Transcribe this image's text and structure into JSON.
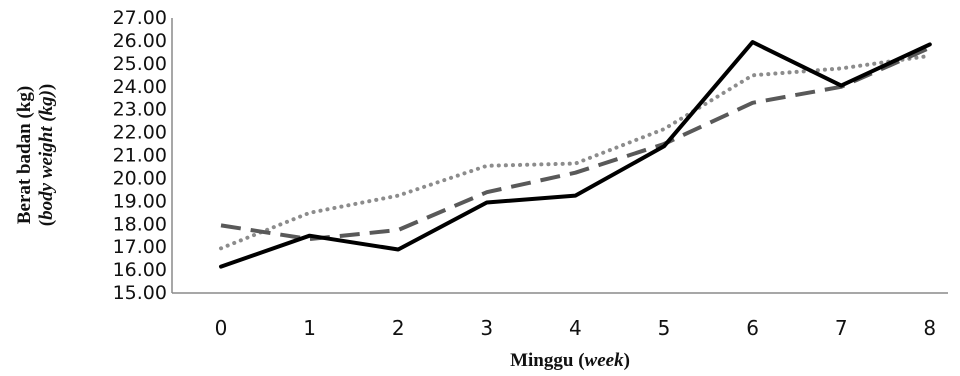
{
  "chart_data": {
    "type": "line",
    "x": [
      0,
      1,
      2,
      3,
      4,
      5,
      6,
      7,
      8
    ],
    "xlabel": {
      "prefix": "Minggu (",
      "italic": "week",
      "suffix": ")"
    },
    "ylabel": {
      "line1": "Berat badan (kg)",
      "line2": {
        "prefix": "(",
        "italic": "body weight (kg)",
        "suffix": ")"
      }
    },
    "ylim": [
      15,
      27
    ],
    "yticks": [
      "15.00",
      "16.00",
      "17.00",
      "18.00",
      "19.00",
      "20.00",
      "21.00",
      "22.00",
      "23.00",
      "24.00",
      "25.00",
      "26.00",
      "27.00"
    ],
    "xticks": [
      "0",
      "1",
      "2",
      "3",
      "4",
      "5",
      "6",
      "7",
      "8"
    ],
    "grid": false,
    "legend": "none",
    "series": [
      {
        "style": "solid",
        "color": "#000000",
        "values": [
          16.15,
          17.5,
          16.9,
          18.95,
          19.25,
          21.4,
          25.95,
          24.05,
          25.85
        ]
      },
      {
        "style": "dashed",
        "color": "#595959",
        "values": [
          17.95,
          17.35,
          17.75,
          19.4,
          20.25,
          21.5,
          23.3,
          24.0,
          25.7
        ]
      },
      {
        "style": "dotted",
        "color": "#8c8c8c",
        "values": [
          16.95,
          18.5,
          19.25,
          20.55,
          20.65,
          22.15,
          24.5,
          24.8,
          25.35
        ]
      }
    ]
  }
}
